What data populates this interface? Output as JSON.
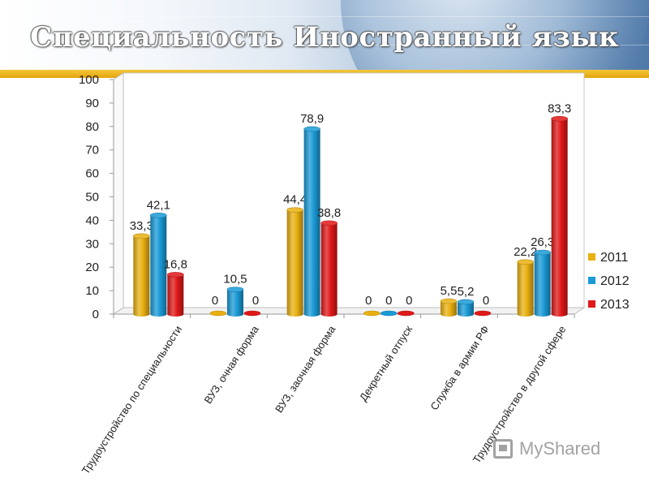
{
  "title": "Специальность Иностранный язык",
  "watermark": "MyShared",
  "colors": {
    "2011": "#e8b010",
    "2012": "#1a9ad6",
    "2013": "#e01818",
    "title_bar": "#e5a40b"
  },
  "chart_data": {
    "type": "bar",
    "categories": [
      "Трудоустройство по специальности",
      "ВУЗ, очная форма",
      "ВУЗ, заочная форма",
      "Декретный отпуск",
      "Служба в армии РФ",
      "Трудоустройство в другой сфере"
    ],
    "series": [
      {
        "name": "2011",
        "values": [
          33.3,
          0,
          44.4,
          0,
          5.5,
          22.2
        ]
      },
      {
        "name": "2012",
        "values": [
          42.1,
          10.5,
          78.9,
          0,
          5.2,
          26.3
        ]
      },
      {
        "name": "2013",
        "values": [
          16.8,
          0,
          38.8,
          0,
          0,
          83.3
        ]
      }
    ],
    "data_labels": [
      [
        "33,3",
        "0",
        "44,4",
        "0",
        "5,5",
        "22,2"
      ],
      [
        "42,1",
        "10,5",
        "78,9",
        "0",
        "5,2",
        "26,3"
      ],
      [
        "16,8",
        "0",
        "38,8",
        "0",
        "0",
        "83,3"
      ]
    ],
    "ylim": [
      0,
      100
    ],
    "yticks": [
      "0",
      "10",
      "20",
      "30",
      "40",
      "50",
      "60",
      "70",
      "80",
      "90",
      "100"
    ],
    "grid": false,
    "legend_position": "right",
    "style": "3d-cylinder"
  }
}
